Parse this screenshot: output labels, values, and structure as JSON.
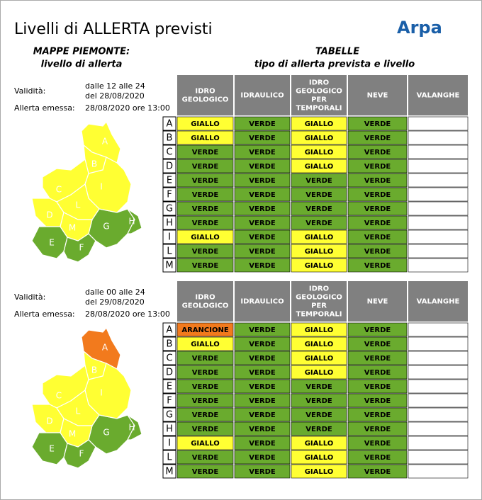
{
  "title": "Livelli di ALLERTA previsti",
  "logo": "Arpa",
  "maps_heading": [
    "MAPPE PIEMONTE:",
    "livello di allerta"
  ],
  "tables_heading": [
    "TABELLE",
    "tipo di allerta prevista e livello"
  ],
  "levels": [
    {
      "name": "VERDE",
      "color": "#6aab2e"
    },
    {
      "name": "GIALLO",
      "color": "#ffff33"
    },
    {
      "name": "ARANCIONE",
      "color": "#f27a1d"
    }
  ],
  "sections": [
    {
      "validity_label": "Validità:",
      "validity": [
        "dalle 12 alle 24",
        "del 28/08/2020"
      ],
      "issued_label": "Allerta emessa:",
      "issued": "28/08/2020 ore 13:00",
      "table": {
        "headers": [
          [
            "IDRO",
            "GEOLOGICO"
          ],
          [
            "IDRAULICO"
          ],
          [
            "IDRO",
            "GEOLOGICO",
            "PER",
            "TEMPORALI"
          ],
          [
            "NEVE"
          ],
          [
            "VALANGHE"
          ]
        ],
        "rows": [
          {
            "zone": "A",
            "values": [
              "GIALLO",
              "VERDE",
              "GIALLO",
              "VERDE"
            ]
          },
          {
            "zone": "B",
            "values": [
              "GIALLO",
              "VERDE",
              "GIALLO",
              "VERDE"
            ]
          },
          {
            "zone": "C",
            "values": [
              "VERDE",
              "VERDE",
              "GIALLO",
              "VERDE"
            ]
          },
          {
            "zone": "D",
            "values": [
              "VERDE",
              "VERDE",
              "GIALLO",
              "VERDE"
            ]
          },
          {
            "zone": "E",
            "values": [
              "VERDE",
              "VERDE",
              "VERDE",
              "VERDE"
            ]
          },
          {
            "zone": "F",
            "values": [
              "VERDE",
              "VERDE",
              "VERDE",
              "VERDE"
            ]
          },
          {
            "zone": "G",
            "values": [
              "VERDE",
              "VERDE",
              "VERDE",
              "VERDE"
            ]
          },
          {
            "zone": "H",
            "values": [
              "VERDE",
              "VERDE",
              "VERDE",
              "VERDE"
            ]
          },
          {
            "zone": "I",
            "values": [
              "GIALLO",
              "VERDE",
              "GIALLO",
              "VERDE"
            ]
          },
          {
            "zone": "L",
            "values": [
              "VERDE",
              "VERDE",
              "GIALLO",
              "VERDE"
            ]
          },
          {
            "zone": "M",
            "values": [
              "VERDE",
              "VERDE",
              "GIALLO",
              "VERDE"
            ]
          }
        ]
      }
    },
    {
      "validity_label": "Validità:",
      "validity": [
        "dalle 00 alle 24",
        "del 29/08/2020"
      ],
      "issued_label": "Allerta emessa:",
      "issued": "28/08/2020 ore 13:00",
      "table": {
        "headers": [
          [
            "IDRO",
            "GEOLOGICO"
          ],
          [
            "IDRAULICO"
          ],
          [
            "IDRO",
            "GEOLOGICO",
            "PER",
            "TEMPORALI"
          ],
          [
            "NEVE"
          ],
          [
            "VALANGHE"
          ]
        ],
        "rows": [
          {
            "zone": "A",
            "values": [
              "ARANCIONE",
              "VERDE",
              "GIALLO",
              "VERDE"
            ]
          },
          {
            "zone": "B",
            "values": [
              "GIALLO",
              "VERDE",
              "GIALLO",
              "VERDE"
            ]
          },
          {
            "zone": "C",
            "values": [
              "VERDE",
              "VERDE",
              "GIALLO",
              "VERDE"
            ]
          },
          {
            "zone": "D",
            "values": [
              "VERDE",
              "VERDE",
              "GIALLO",
              "VERDE"
            ]
          },
          {
            "zone": "E",
            "values": [
              "VERDE",
              "VERDE",
              "VERDE",
              "VERDE"
            ]
          },
          {
            "zone": "F",
            "values": [
              "VERDE",
              "VERDE",
              "VERDE",
              "VERDE"
            ]
          },
          {
            "zone": "G",
            "values": [
              "VERDE",
              "VERDE",
              "VERDE",
              "VERDE"
            ]
          },
          {
            "zone": "H",
            "values": [
              "VERDE",
              "VERDE",
              "VERDE",
              "VERDE"
            ]
          },
          {
            "zone": "I",
            "values": [
              "GIALLO",
              "VERDE",
              "GIALLO",
              "VERDE"
            ]
          },
          {
            "zone": "L",
            "values": [
              "VERDE",
              "VERDE",
              "GIALLO",
              "VERDE"
            ]
          },
          {
            "zone": "M",
            "values": [
              "VERDE",
              "VERDE",
              "GIALLO",
              "VERDE"
            ]
          }
        ]
      }
    }
  ]
}
